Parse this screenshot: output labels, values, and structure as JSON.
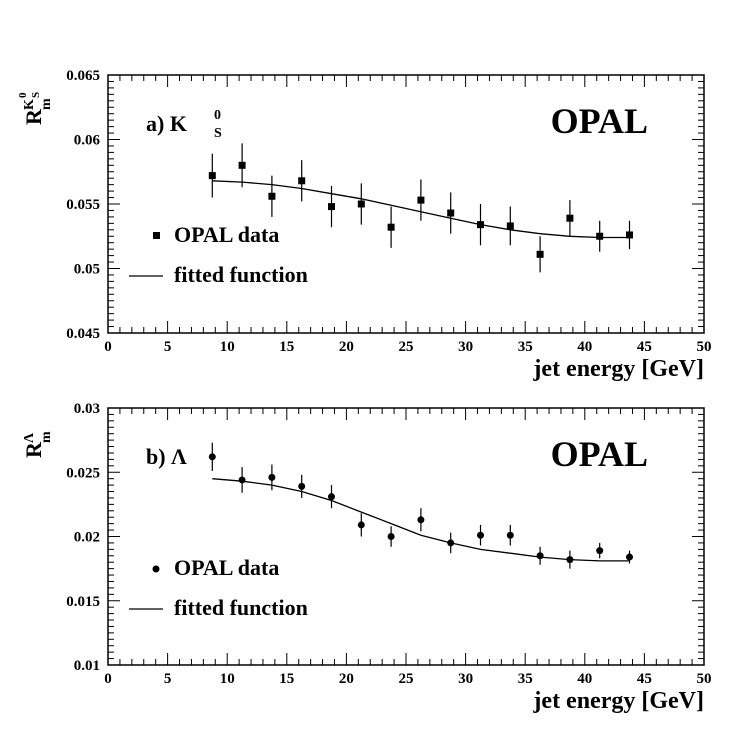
{
  "chart_data": [
    {
      "type": "scatter",
      "panel_label": "a) K",
      "panel_label_sup": "0",
      "panel_label_sub": "S",
      "brand": "OPAL",
      "ylabel_main": "R",
      "ylabel_sub": "m",
      "ylabel_sup": "K",
      "ylabel_sup_sup": "0",
      "ylabel_sup_sub": "S",
      "xlabel": "jet energy [GeV]",
      "xlim": [
        0,
        50
      ],
      "ylim": [
        0.045,
        0.065
      ],
      "xticks": [
        "0",
        "5",
        "10",
        "15",
        "20",
        "25",
        "30",
        "35",
        "40",
        "45",
        "50"
      ],
      "yticks": [
        "0.045",
        "0.05",
        "0.055",
        "0.06",
        "0.065"
      ],
      "marker": "square",
      "legend": [
        "OPAL data",
        "fitted function"
      ],
      "series": [
        {
          "name": "OPAL data",
          "x": [
            8.75,
            11.25,
            13.75,
            16.25,
            18.75,
            21.25,
            23.75,
            26.25,
            28.75,
            31.25,
            33.75,
            36.25,
            38.75,
            41.25,
            43.75
          ],
          "y": [
            0.0572,
            0.058,
            0.0556,
            0.0568,
            0.0548,
            0.055,
            0.0532,
            0.0553,
            0.0543,
            0.0534,
            0.0533,
            0.0511,
            0.0539,
            0.0525,
            0.0526
          ],
          "err": [
            0.0017,
            0.0017,
            0.0016,
            0.0016,
            0.0016,
            0.0016,
            0.0016,
            0.0016,
            0.0016,
            0.0016,
            0.0015,
            0.0014,
            0.0014,
            0.0012,
            0.0011
          ]
        },
        {
          "name": "fitted function",
          "x": [
            8.75,
            11.25,
            13.75,
            16.25,
            18.75,
            21.25,
            23.75,
            26.25,
            28.75,
            31.25,
            33.75,
            36.25,
            38.75,
            41.25,
            43.75
          ],
          "y": [
            0.0568,
            0.0567,
            0.0565,
            0.0562,
            0.0558,
            0.0554,
            0.0549,
            0.0544,
            0.0539,
            0.0534,
            0.053,
            0.0527,
            0.0525,
            0.0524,
            0.0524
          ]
        }
      ]
    },
    {
      "type": "scatter",
      "panel_label": "b) Λ",
      "brand": "OPAL",
      "ylabel_main": "R",
      "ylabel_sub": "m",
      "ylabel_sup": "Λ",
      "xlabel": "jet energy [GeV]",
      "xlim": [
        0,
        50
      ],
      "ylim": [
        0.01,
        0.03
      ],
      "xticks": [
        "0",
        "5",
        "10",
        "15",
        "20",
        "25",
        "30",
        "35",
        "40",
        "45",
        "50"
      ],
      "yticks": [
        "0.01",
        "0.015",
        "0.02",
        "0.025",
        "0.03"
      ],
      "marker": "circle",
      "legend": [
        "OPAL data",
        "fitted function"
      ],
      "series": [
        {
          "name": "OPAL data",
          "x": [
            8.75,
            11.25,
            13.75,
            16.25,
            18.75,
            21.25,
            23.75,
            26.25,
            28.75,
            31.25,
            33.75,
            36.25,
            38.75,
            41.25,
            43.75
          ],
          "y": [
            0.0262,
            0.0244,
            0.0246,
            0.0239,
            0.0231,
            0.0209,
            0.02,
            0.0213,
            0.0195,
            0.0201,
            0.0201,
            0.0185,
            0.0182,
            0.0189,
            0.0184
          ],
          "err": [
            0.0011,
            0.001,
            0.001,
            0.0009,
            0.0009,
            0.0009,
            0.0008,
            0.0009,
            0.0008,
            0.0008,
            0.0008,
            0.0007,
            0.0007,
            0.0006,
            0.0005
          ]
        },
        {
          "name": "fitted function",
          "x": [
            8.75,
            11.25,
            13.75,
            16.25,
            18.75,
            21.25,
            23.75,
            26.25,
            28.75,
            31.25,
            33.75,
            36.25,
            38.75,
            41.25,
            43.75
          ],
          "y": [
            0.0245,
            0.0243,
            0.024,
            0.0235,
            0.0228,
            0.0219,
            0.021,
            0.0201,
            0.0195,
            0.019,
            0.0187,
            0.0184,
            0.0182,
            0.0181,
            0.0181
          ]
        }
      ]
    }
  ]
}
